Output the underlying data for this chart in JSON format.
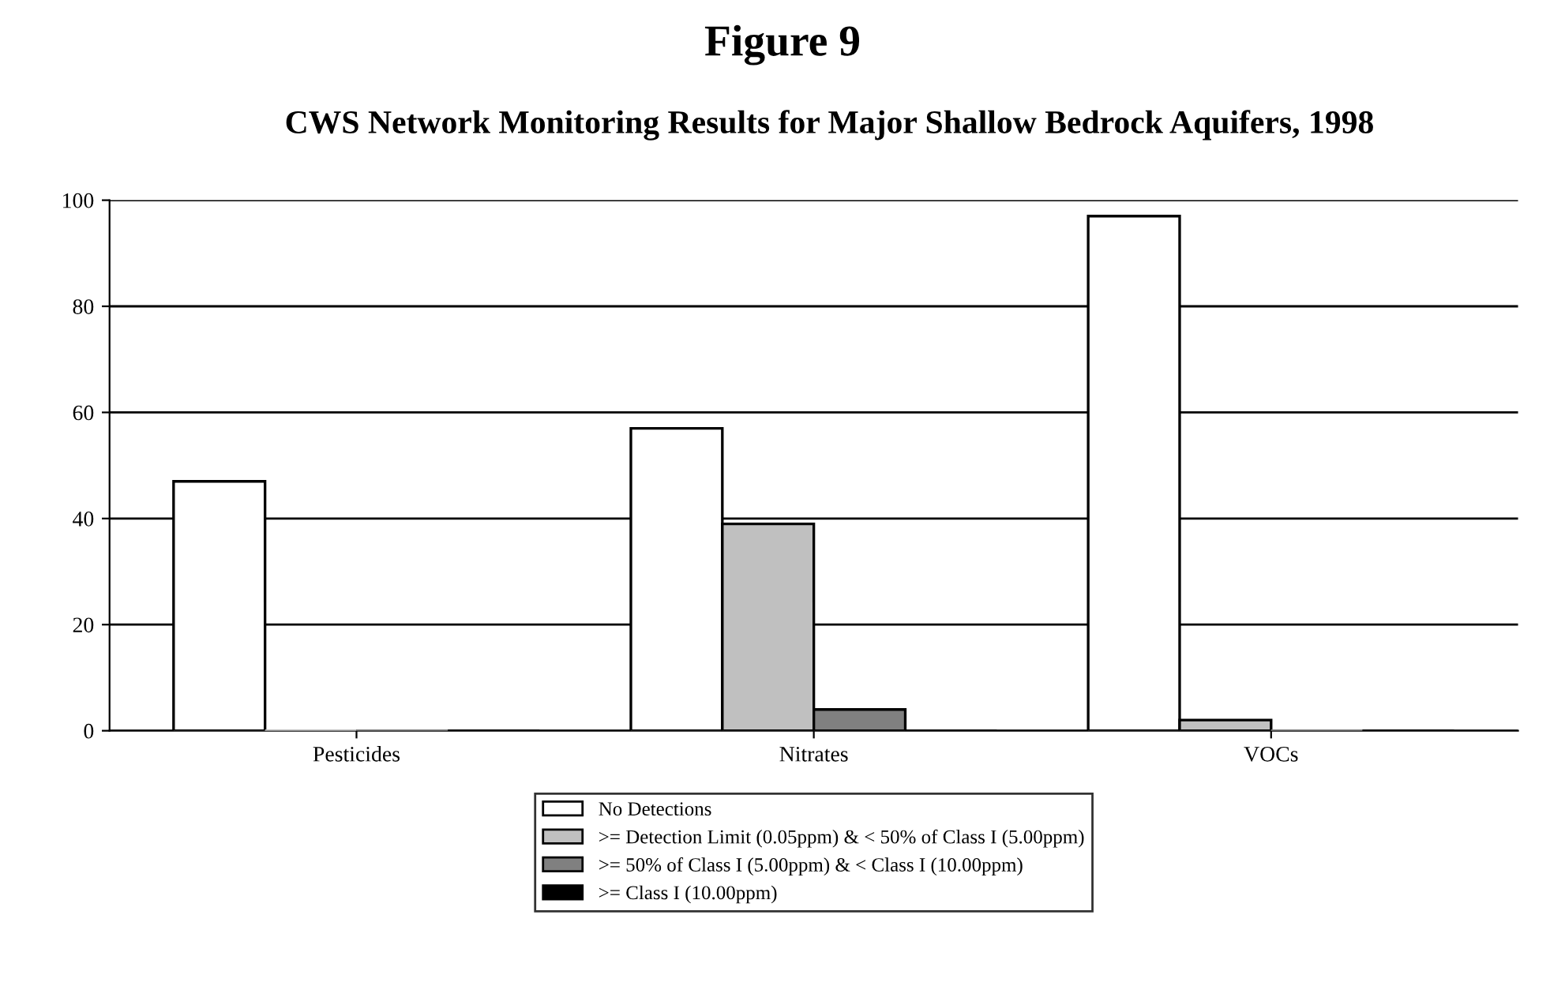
{
  "chart_data": {
    "type": "bar",
    "title": "Figure 9",
    "subtitle": "CWS Network Monitoring Results for Major Shallow Bedrock Aquifers, 1998",
    "categories": [
      "Pesticides",
      "Nitrates",
      "VOCs"
    ],
    "series": [
      {
        "name": "No Detections",
        "color": "#ffffff",
        "values": [
          47,
          57,
          97
        ]
      },
      {
        "name": ">= Detection Limit (0.05ppm) & < 50% of Class I (5.00ppm)",
        "color": "#c0c0c0",
        "values": [
          0,
          39,
          2
        ]
      },
      {
        "name": ">= 50% of Class I (5.00ppm) & < Class I (10.00ppm)",
        "color": "#808080",
        "values": [
          0,
          4,
          0
        ]
      },
      {
        "name": ">= Class I (10.00ppm)",
        "color": "#000000",
        "values": [
          0,
          0,
          0
        ]
      }
    ],
    "ylim": [
      0,
      100
    ],
    "yticks": [
      0,
      20,
      40,
      60,
      80,
      100
    ],
    "grid": "y",
    "legend": "bottom"
  }
}
